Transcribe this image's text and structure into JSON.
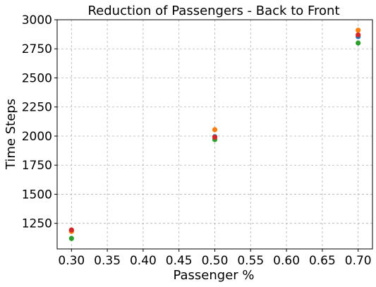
{
  "chart_data": {
    "type": "scatter",
    "title": "Reduction of Passengers - Back to Front",
    "xlabel": "Passenger %",
    "ylabel": "Time Steps",
    "xlim": [
      0.28,
      0.72
    ],
    "ylim": [
      1030,
      3000
    ],
    "xticks": [
      "0.30",
      "0.35",
      "0.40",
      "0.45",
      "0.50",
      "0.55",
      "0.60",
      "0.65",
      "0.70"
    ],
    "yticks": [
      "1250",
      "1500",
      "1750",
      "2000",
      "2250",
      "2500",
      "2750",
      "3000"
    ],
    "grid": true,
    "series": [
      {
        "color": "#1f77b4",
        "x": [
          0.3,
          0.5,
          0.7
        ],
        "y": [
          1185,
          1995,
          2855
        ]
      },
      {
        "color": "#ff7f0e",
        "x": [
          0.3,
          0.5,
          0.7
        ],
        "y": [
          1180,
          2055,
          2910
        ]
      },
      {
        "color": "#2ca02c",
        "x": [
          0.3,
          0.5,
          0.7
        ],
        "y": [
          1120,
          1970,
          2800
        ]
      },
      {
        "color": "#d62728",
        "x": [
          0.3,
          0.5,
          0.7
        ],
        "y": [
          1193,
          1990,
          2870
        ]
      }
    ]
  }
}
